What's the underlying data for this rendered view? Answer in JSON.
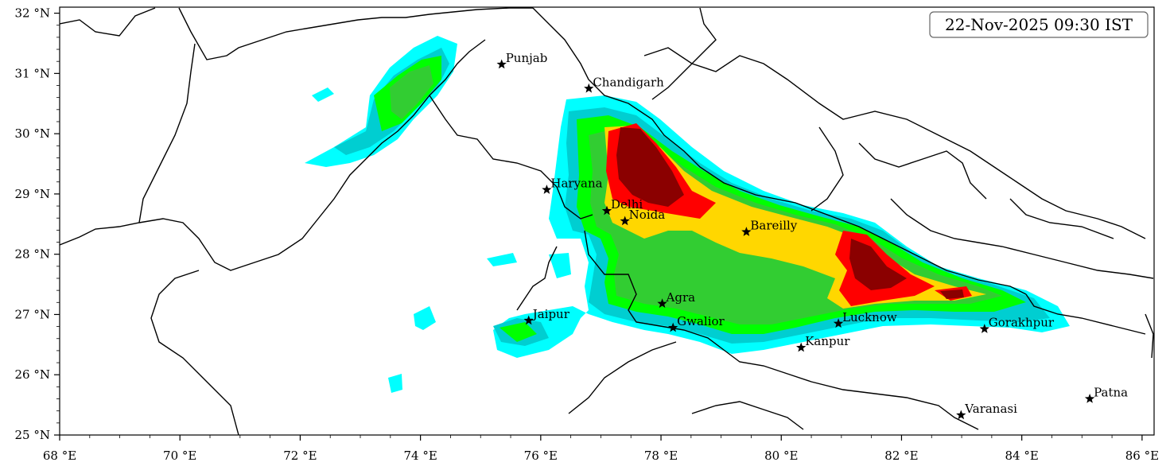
{
  "timestamp": "22-Nov-2025 09:30 IST",
  "colors": {
    "cyan": "#00ffff",
    "teal": "#00ced1",
    "lime": "#00ff00",
    "green": "#32cd32",
    "gold": "#ffd700",
    "red": "#ff0000",
    "darkred": "#8b0000"
  },
  "axes": {
    "lon_range": [
      68,
      86.2
    ],
    "lat_range": [
      25,
      32.1
    ],
    "x_ticks": [
      {
        "value": 68,
        "label": "68 °E"
      },
      {
        "value": 70,
        "label": "70 °E"
      },
      {
        "value": 72,
        "label": "72 °E"
      },
      {
        "value": 74,
        "label": "74 °E"
      },
      {
        "value": 76,
        "label": "76 °E"
      },
      {
        "value": 78,
        "label": "78 °E"
      },
      {
        "value": 80,
        "label": "80 °E"
      },
      {
        "value": 82,
        "label": "82 °E"
      },
      {
        "value": 84,
        "label": "84 °E"
      },
      {
        "value": 86,
        "label": "86 °E"
      }
    ],
    "y_ticks": [
      {
        "value": 25,
        "label": "25 °N"
      },
      {
        "value": 26,
        "label": "26 °N"
      },
      {
        "value": 27,
        "label": "27 °N"
      },
      {
        "value": 28,
        "label": "28 °N"
      },
      {
        "value": 29,
        "label": "29 °N"
      },
      {
        "value": 30,
        "label": "30 °N"
      },
      {
        "value": 31,
        "label": "31 °N"
      },
      {
        "value": 32,
        "label": "32 °N"
      }
    ]
  },
  "cities": [
    {
      "name": "Punjab",
      "lon": 75.35,
      "lat": 31.15
    },
    {
      "name": "Chandigarh",
      "lon": 76.8,
      "lat": 30.75
    },
    {
      "name": "Haryana",
      "lon": 76.1,
      "lat": 29.07
    },
    {
      "name": "Delhi",
      "lon": 77.1,
      "lat": 28.72
    },
    {
      "name": "Noida",
      "lon": 77.4,
      "lat": 28.55
    },
    {
      "name": "Bareilly",
      "lon": 79.42,
      "lat": 28.37
    },
    {
      "name": "Agra",
      "lon": 78.02,
      "lat": 27.18
    },
    {
      "name": "Jaipur",
      "lon": 75.8,
      "lat": 26.9
    },
    {
      "name": "Gwalior",
      "lon": 78.2,
      "lat": 26.78
    },
    {
      "name": "Lucknow",
      "lon": 80.95,
      "lat": 26.85
    },
    {
      "name": "Kanpur",
      "lon": 80.33,
      "lat": 26.45
    },
    {
      "name": "Gorakhpur",
      "lon": 83.38,
      "lat": 26.76
    },
    {
      "name": "Varanasi",
      "lon": 82.99,
      "lat": 25.33
    },
    {
      "name": "Patna",
      "lon": 85.13,
      "lat": 25.6
    }
  ]
}
